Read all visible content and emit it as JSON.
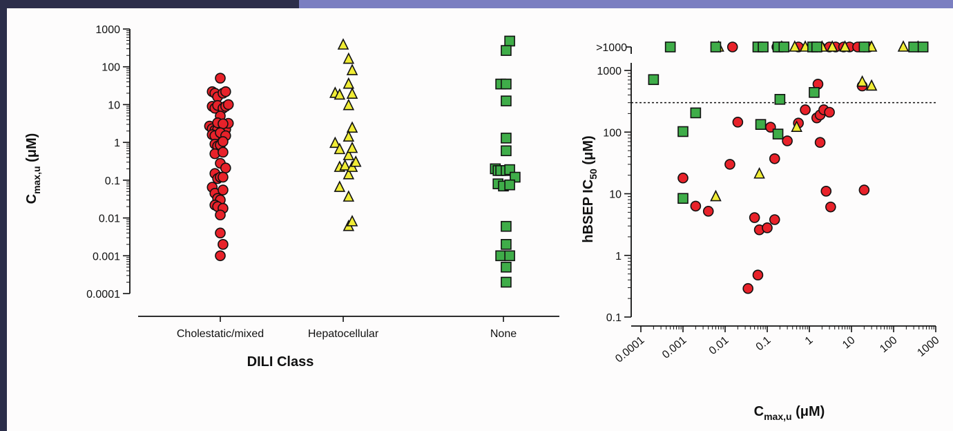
{
  "colors": {
    "cholestatic": "#e8222a",
    "hepatocellular": "#f0ec35",
    "none": "#3fad49",
    "accent_bar": "#7b7fc1",
    "dark_bar": "#2c2e4a"
  },
  "chart_data": [
    {
      "type": "scatter",
      "title": "",
      "xlabel": "DILI Class",
      "ylabel_main": "C",
      "ylabel_sub": "max,u",
      "ylabel_unit": " (μM)",
      "yscale": "log",
      "ylim": [
        0.0001,
        1000
      ],
      "yticks": [
        "1000",
        "100",
        "10",
        "1",
        "0.1",
        "0.01",
        "0.001",
        "0.0001"
      ],
      "categories": [
        "Cholestatic/mixed",
        "Hepatocellular",
        "None"
      ],
      "series": [
        {
          "category": "Cholestatic/mixed",
          "marker": "circle",
          "color": "#e8222a",
          "points": [
            {
              "x": 0,
              "y": 50
            },
            {
              "x": -0.9,
              "y": 22
            },
            {
              "x": -0.6,
              "y": 20
            },
            {
              "x": -0.3,
              "y": 16
            },
            {
              "x": 0.3,
              "y": 20
            },
            {
              "x": 0.6,
              "y": 22
            },
            {
              "x": -0.9,
              "y": 9
            },
            {
              "x": -0.6,
              "y": 8
            },
            {
              "x": -0.3,
              "y": 9.5
            },
            {
              "x": 0.3,
              "y": 8
            },
            {
              "x": 0.6,
              "y": 9
            },
            {
              "x": 0.9,
              "y": 10
            },
            {
              "x": 0,
              "y": 5
            },
            {
              "x": -1.2,
              "y": 2.7
            },
            {
              "x": -0.9,
              "y": 2.3
            },
            {
              "x": -0.6,
              "y": 2.1
            },
            {
              "x": -0.3,
              "y": 2.2
            },
            {
              "x": 0.3,
              "y": 2.1
            },
            {
              "x": 0.6,
              "y": 2.2
            },
            {
              "x": 0.9,
              "y": 3.2
            },
            {
              "x": -0.3,
              "y": 3.3
            },
            {
              "x": 0.3,
              "y": 3.1
            },
            {
              "x": -0.9,
              "y": 1.6
            },
            {
              "x": -0.6,
              "y": 1.5
            },
            {
              "x": 0,
              "y": 1.8
            },
            {
              "x": 0.6,
              "y": 1.5
            },
            {
              "x": -0.6,
              "y": 0.9
            },
            {
              "x": -0.3,
              "y": 0.8
            },
            {
              "x": 0,
              "y": 0.85
            },
            {
              "x": 0.3,
              "y": 1.05
            },
            {
              "x": -0.6,
              "y": 0.5
            },
            {
              "x": 0.3,
              "y": 0.55
            },
            {
              "x": 0,
              "y": 0.28
            },
            {
              "x": 0.6,
              "y": 0.21
            },
            {
              "x": -0.6,
              "y": 0.15
            },
            {
              "x": -0.3,
              "y": 0.11
            },
            {
              "x": 0,
              "y": 0.12
            },
            {
              "x": 0.3,
              "y": 0.12
            },
            {
              "x": -0.9,
              "y": 0.065
            },
            {
              "x": -0.6,
              "y": 0.045
            },
            {
              "x": 0.3,
              "y": 0.055
            },
            {
              "x": -0.3,
              "y": 0.033
            },
            {
              "x": 0,
              "y": 0.03
            },
            {
              "x": -0.6,
              "y": 0.022
            },
            {
              "x": -0.3,
              "y": 0.02
            },
            {
              "x": 0.3,
              "y": 0.018
            },
            {
              "x": 0,
              "y": 0.012
            },
            {
              "x": 0,
              "y": 0.004
            },
            {
              "x": 0.3,
              "y": 0.002
            },
            {
              "x": 0,
              "y": 0.001
            }
          ]
        },
        {
          "category": "Hepatocellular",
          "marker": "triangle",
          "color": "#f0ec35",
          "points": [
            {
              "x": 0,
              "y": 380
            },
            {
              "x": 0.6,
              "y": 160
            },
            {
              "x": 1.0,
              "y": 80
            },
            {
              "x": 0.6,
              "y": 35
            },
            {
              "x": -0.9,
              "y": 20
            },
            {
              "x": -0.4,
              "y": 18
            },
            {
              "x": 1.0,
              "y": 19
            },
            {
              "x": 0.6,
              "y": 9.5
            },
            {
              "x": 1.0,
              "y": 2.4
            },
            {
              "x": 0.6,
              "y": 1.4
            },
            {
              "x": -0.9,
              "y": 0.95
            },
            {
              "x": -0.4,
              "y": 0.65
            },
            {
              "x": 0.6,
              "y": 0.45
            },
            {
              "x": 1.0,
              "y": 0.7
            },
            {
              "x": -0.4,
              "y": 0.22
            },
            {
              "x": 0.2,
              "y": 0.24
            },
            {
              "x": 0.6,
              "y": 0.14
            },
            {
              "x": 1.0,
              "y": 0.22
            },
            {
              "x": 1.4,
              "y": 0.3
            },
            {
              "x": -0.4,
              "y": 0.065
            },
            {
              "x": 0.6,
              "y": 0.036
            },
            {
              "x": 0.6,
              "y": 0.006
            },
            {
              "x": 1.0,
              "y": 0.008
            }
          ]
        },
        {
          "category": "None",
          "marker": "square",
          "color": "#3fad49",
          "points": [
            {
              "x": 0.7,
              "y": 480
            },
            {
              "x": 0.3,
              "y": 270
            },
            {
              "x": -0.3,
              "y": 35
            },
            {
              "x": 0.3,
              "y": 35
            },
            {
              "x": 0.3,
              "y": 12.5
            },
            {
              "x": 0.3,
              "y": 1.3
            },
            {
              "x": 0.3,
              "y": 0.6
            },
            {
              "x": -0.9,
              "y": 0.2
            },
            {
              "x": -0.6,
              "y": 0.18
            },
            {
              "x": -0.3,
              "y": 0.18
            },
            {
              "x": 0.3,
              "y": 0.18
            },
            {
              "x": 0.7,
              "y": 0.19
            },
            {
              "x": 1.3,
              "y": 0.12
            },
            {
              "x": -0.6,
              "y": 0.08
            },
            {
              "x": 0,
              "y": 0.07
            },
            {
              "x": 0.7,
              "y": 0.075
            },
            {
              "x": 0.3,
              "y": 0.006
            },
            {
              "x": 0.3,
              "y": 0.002
            },
            {
              "x": -0.3,
              "y": 0.001
            },
            {
              "x": 0.7,
              "y": 0.001
            },
            {
              "x": 0.3,
              "y": 0.0005
            },
            {
              "x": 0.3,
              "y": 0.0002
            }
          ]
        }
      ]
    },
    {
      "type": "scatter",
      "title": "",
      "xlabel_main": "C",
      "xlabel_sub": "max,u",
      "xlabel_unit": " (μM)",
      "ylabel_main": "hBSEP IC",
      "ylabel_sub": "50",
      "ylabel_unit": " (μM)",
      "xscale": "log",
      "yscale": "log",
      "xlim": [
        0.0001,
        1000
      ],
      "ylim": [
        0.1,
        1000
      ],
      "xticks": [
        "0.0001",
        "0.001",
        "0.01",
        "0.1",
        "1",
        "10",
        "100",
        "1000"
      ],
      "yticks": [
        "1000",
        "100",
        "10",
        "1",
        "0.1"
      ],
      "break_label": ">1000",
      "threshold_line": 300,
      "series": [
        {
          "name": "",
          "marker": "circle",
          "color": "#e8222a",
          "points": [
            {
              "x": 0.02,
              "y": 145
            },
            {
              "x": 0.013,
              "y": 30
            },
            {
              "x": 0.001,
              "y": 18
            },
            {
              "x": 0.002,
              "y": 6.3
            },
            {
              "x": 0.004,
              "y": 5.2
            },
            {
              "x": 0.05,
              "y": 4.1
            },
            {
              "x": 0.065,
              "y": 2.6
            },
            {
              "x": 0.1,
              "y": 2.8
            },
            {
              "x": 0.15,
              "y": 3.8
            },
            {
              "x": 0.035,
              "y": 0.29
            },
            {
              "x": 0.06,
              "y": 0.48
            },
            {
              "x": 0.12,
              "y": 120
            },
            {
              "x": 0.15,
              "y": 37
            },
            {
              "x": 0.3,
              "y": 72
            },
            {
              "x": 0.55,
              "y": 140
            },
            {
              "x": 0.8,
              "y": 230
            },
            {
              "x": 1.5,
              "y": 170
            },
            {
              "x": 1.8,
              "y": 190
            },
            {
              "x": 2.2,
              "y": 230
            },
            {
              "x": 3.0,
              "y": 210
            },
            {
              "x": 1.6,
              "y": 600
            },
            {
              "x": 1.8,
              "y": 68
            },
            {
              "x": 2.5,
              "y": 11
            },
            {
              "x": 3.2,
              "y": 6.1
            },
            {
              "x": 18,
              "y": 560
            },
            {
              "x": 20,
              "y": 11.5
            }
          ],
          "above_1000_x": [
            0.015,
            0.17,
            0.55,
            1.2,
            1.8,
            3.0,
            4.2,
            6.5,
            9.0,
            14,
            20,
            26
          ]
        },
        {
          "name": "",
          "marker": "triangle",
          "color": "#f0ec35",
          "points": [
            {
              "x": 0.006,
              "y": 9
            },
            {
              "x": 0.065,
              "y": 21
            },
            {
              "x": 0.5,
              "y": 120
            },
            {
              "x": 18,
              "y": 650
            },
            {
              "x": 30,
              "y": 560
            }
          ],
          "above_1000_x": [
            0.007,
            0.22,
            0.45,
            0.8,
            2.0,
            3.5,
            7,
            30,
            170,
            380
          ]
        },
        {
          "name": "",
          "marker": "square",
          "color": "#3fad49",
          "points": [
            {
              "x": 0.0002,
              "y": 710
            },
            {
              "x": 0.001,
              "y": 102
            },
            {
              "x": 0.001,
              "y": 8.4
            },
            {
              "x": 0.002,
              "y": 205
            },
            {
              "x": 0.07,
              "y": 133
            },
            {
              "x": 0.18,
              "y": 93
            },
            {
              "x": 0.2,
              "y": 340
            },
            {
              "x": 1.3,
              "y": 440
            }
          ],
          "above_1000_x": [
            0.0005,
            0.006,
            0.06,
            0.08,
            0.18,
            0.25,
            1.2,
            1.5,
            20,
            300,
            500
          ]
        }
      ]
    }
  ]
}
